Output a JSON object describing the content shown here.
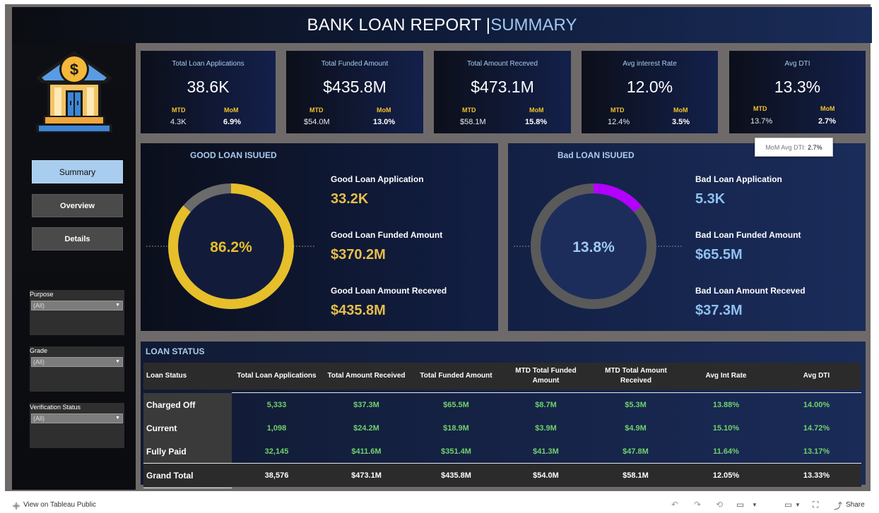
{
  "header": {
    "title_main": "BANK LOAN REPORT | ",
    "title_accent": "SUMMARY"
  },
  "nav": {
    "summary": "Summary",
    "overview": "Overview",
    "details": "Details"
  },
  "filters": [
    {
      "label": "Purpose",
      "value": "(All)"
    },
    {
      "label": "Grade",
      "value": "(All)"
    },
    {
      "label": "Verification Status",
      "value": "(All)"
    }
  ],
  "kpis": [
    {
      "title": "Total Loan Applications",
      "value": "38.6K",
      "mtd_label": "MTD",
      "mtd": "4.3K",
      "mom_label": "MoM",
      "mom": "6.9%"
    },
    {
      "title": "Total Funded Amount",
      "value": "$435.8M",
      "mtd_label": "MTD",
      "mtd": "$54.0M",
      "mom_label": "MoM",
      "mom": "13.0%"
    },
    {
      "title": "Total Amount Receved",
      "value": "$473.1M",
      "mtd_label": "MTD",
      "mtd": "$58.1M",
      "mom_label": "MoM",
      "mom": "15.8%"
    },
    {
      "title": "Avg interest Rate",
      "value": "12.0%",
      "mtd_label": "MTD",
      "mtd": "12.4%",
      "mom_label": "MoM",
      "mom": "3.5%"
    },
    {
      "title": "Avg DTI",
      "value": "13.3%",
      "mtd_label": "MTD",
      "mtd": "13.7%",
      "mom_label": "MoM",
      "mom": "2.7%"
    }
  ],
  "tooltip": {
    "label": "MoM Avg DTI:",
    "value": "2.7%"
  },
  "good_loan": {
    "title": "GOOD LOAN ISUUED",
    "percent_label": "86.2%",
    "percent": 86.2,
    "app_label": "Good Loan Application",
    "app_value": "33.2K",
    "funded_label": "Good Loan Funded Amount",
    "funded_value": "$370.2M",
    "received_label": "Good Loan Amount Receved",
    "received_value": "$435.8M",
    "color": "#e6bf2a"
  },
  "bad_loan": {
    "title": "Bad LOAN ISUUED",
    "percent_label": "13.8%",
    "percent": 13.8,
    "app_label": "Bad Loan Application",
    "app_value": "5.3K",
    "funded_label": "Bad Loan Funded Amount",
    "funded_value": "$65.5M",
    "received_label": "Bad Loan Amount Receved",
    "received_value": "$37.3M",
    "color": "#b300ff"
  },
  "loan_status": {
    "title": "LOAN STATUS",
    "headers": [
      "Loan Status",
      "Total Loan Applications",
      "Total Amount Received",
      "Total Funded Amount",
      "MTD Total Funded Amount",
      "MTD Total Amount Received",
      "Avg Int Rate",
      "Avg DTI"
    ],
    "rows": [
      [
        "Charged Off",
        "5,333",
        "$37.3M",
        "$65.5M",
        "$8.7M",
        "$5.3M",
        "13.88%",
        "14.00%"
      ],
      [
        "Current",
        "1,098",
        "$24.2M",
        "$18.9M",
        "$3.9M",
        "$4.9M",
        "15.10%",
        "14.72%"
      ],
      [
        "Fully Paid",
        "32,145",
        "$411.6M",
        "$351.4M",
        "$41.3M",
        "$47.8M",
        "11.64%",
        "13.17%"
      ]
    ],
    "total": [
      "Grand Total",
      "38,576",
      "$473.1M",
      "$435.8M",
      "$54.0M",
      "$58.1M",
      "12.05%",
      "13.33%"
    ]
  },
  "footer": {
    "view_label": "View on Tableau Public",
    "share_label": "Share"
  }
}
